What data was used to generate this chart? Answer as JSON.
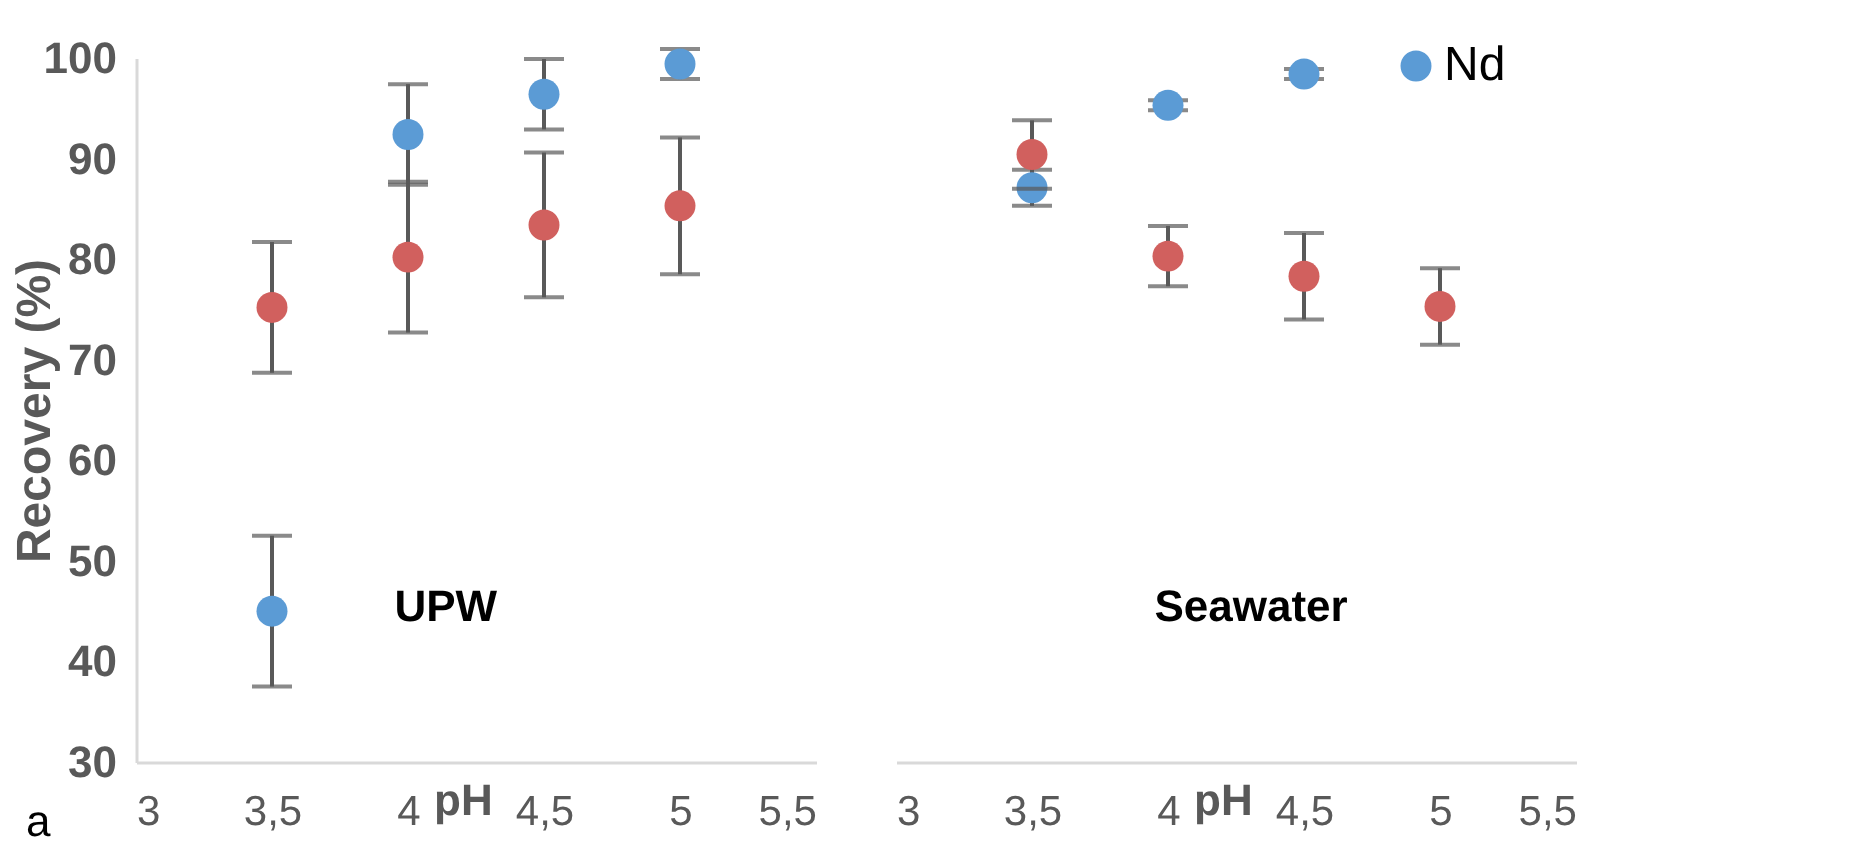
{
  "chart_data": [
    {
      "type": "scatter",
      "ylabel": "Recovery (%)",
      "xlabel": "pH",
      "annotations": [
        "UPW",
        "a"
      ],
      "x": [
        3.5,
        4,
        4.5,
        5
      ],
      "series": [
        {
          "color": "#5b9bd5",
          "values": [
            45,
            92.4,
            96.4,
            99.4
          ],
          "errors": [
            7.5,
            5,
            3.5,
            1.5
          ]
        },
        {
          "color": "#d1605e",
          "values": [
            75.2,
            80.2,
            83.4,
            85.3
          ],
          "errors": [
            6.5,
            7.5,
            7.2,
            6.8
          ]
        }
      ],
      "xlim": [
        3,
        5.5
      ],
      "xticks": [
        3,
        {
          "value": 3.5,
          "label": "3,5"
        },
        4,
        {
          "value": 4.5,
          "label": "4,5"
        },
        5,
        {
          "value": 5.5,
          "label": "5,5"
        }
      ],
      "ylim": [
        30,
        100
      ],
      "yticks": [
        30,
        40,
        50,
        60,
        70,
        80,
        90,
        100
      ],
      "grid": false,
      "legend": false,
      "marker": "circle"
    },
    {
      "type": "scatter",
      "xlabel": "pH",
      "annotations": [
        "Seawater"
      ],
      "x": [
        3.5,
        4,
        4.5,
        5
      ],
      "series": [
        {
          "name": "Nd",
          "color": "#5b9bd5",
          "values": [
            87.1,
            95.3,
            98.4,
            null
          ],
          "errors": [
            1.8,
            0.5,
            0.5,
            null
          ]
        },
        {
          "color": "#d1605e",
          "values": [
            90.4,
            80.3,
            78.3,
            75.3
          ],
          "errors": [
            3.4,
            3,
            4.3,
            3.8
          ]
        }
      ],
      "xlim": [
        3,
        5.5
      ],
      "xticks": [
        3,
        {
          "value": 3.5,
          "label": "3,5"
        },
        4,
        {
          "value": 4.5,
          "label": "4,5"
        },
        5,
        {
          "value": 5.5,
          "label": "5,5"
        }
      ],
      "ylim": [
        30,
        100
      ],
      "yticks": [
        30,
        40,
        50,
        60,
        70,
        80,
        90,
        100
      ],
      "tick_labels": "x",
      "grid": false,
      "legend": "top right",
      "marker": "circle"
    }
  ]
}
